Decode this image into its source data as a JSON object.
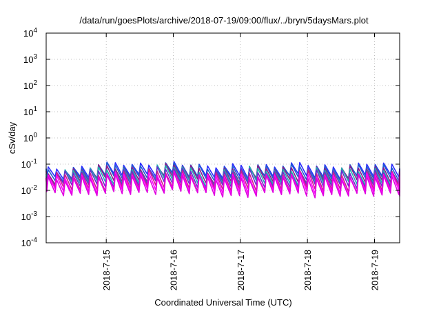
{
  "chart_data": {
    "type": "line",
    "title": "/data/run/goesPlots/archive/2018-07-19/09:00/flux/../bryn/5daysMars.plot",
    "xlabel": "Coordinated Universal Time (UTC)",
    "ylabel": "cSv/day",
    "yscale": "log",
    "ylim": [
      0.0001,
      10000
    ],
    "xlim": [
      "2018-07-14T02:30",
      "2018-07-19T09:00"
    ],
    "grid": true,
    "legend": "none",
    "x_ticks": [
      "2018-7-15",
      "2018-7-16",
      "2018-7-17",
      "2018-7-18",
      "2018-7-19"
    ],
    "y_ticks": [
      {
        "base": "10",
        "exp": "-4"
      },
      {
        "base": "10",
        "exp": "-3"
      },
      {
        "base": "10",
        "exp": "-2"
      },
      {
        "base": "10",
        "exp": "-1"
      },
      {
        "base": "10",
        "exp": "0"
      },
      {
        "base": "10",
        "exp": "1"
      },
      {
        "base": "10",
        "exp": "2"
      },
      {
        "base": "10",
        "exp": "3"
      },
      {
        "base": "10",
        "exp": "4"
      }
    ],
    "sawtooth": {
      "period_hours": 3.0,
      "first_peak": "2018-07-14T03:15",
      "peak_envelope": [
        {
          "x": "2018-07-14T02:30",
          "y": 0.06
        },
        {
          "x": "2018-07-15T00:00",
          "y": 0.1
        },
        {
          "x": "2018-07-15T12:00",
          "y": 0.09
        },
        {
          "x": "2018-07-16T00:00",
          "y": 0.12
        },
        {
          "x": "2018-07-16T12:00",
          "y": 0.07
        },
        {
          "x": "2018-07-17T00:00",
          "y": 0.1
        },
        {
          "x": "2018-07-17T12:00",
          "y": 0.08
        },
        {
          "x": "2018-07-18T00:00",
          "y": 0.1
        },
        {
          "x": "2018-07-18T12:00",
          "y": 0.08
        },
        {
          "x": "2018-07-19T00:00",
          "y": 0.1
        },
        {
          "x": "2018-07-19T09:00",
          "y": 0.08
        }
      ],
      "trough_envelope": [
        {
          "x": "2018-07-14T02:30",
          "y": 0.0045
        },
        {
          "x": "2018-07-15T00:00",
          "y": 0.0035
        },
        {
          "x": "2018-07-15T12:00",
          "y": 0.004
        },
        {
          "x": "2018-07-16T00:00",
          "y": 0.005
        },
        {
          "x": "2018-07-16T12:00",
          "y": 0.0035
        },
        {
          "x": "2018-07-17T00:00",
          "y": 0.003
        },
        {
          "x": "2018-07-17T12:00",
          "y": 0.004
        },
        {
          "x": "2018-07-18T00:00",
          "y": 0.003
        },
        {
          "x": "2018-07-18T12:00",
          "y": 0.0035
        },
        {
          "x": "2018-07-19T00:00",
          "y": 0.003
        },
        {
          "x": "2018-07-19T09:00",
          "y": 0.004
        }
      ]
    },
    "series": [
      {
        "color": "#2b2bff",
        "level": 1.0
      },
      {
        "color": "#1e5fd0",
        "level": 0.92
      },
      {
        "color": "#8b1a8b",
        "level": 0.8
      },
      {
        "color": "#20b0b0",
        "level": 0.7
      },
      {
        "color": "#6a2bd0",
        "level": 0.58
      },
      {
        "color": "#d01e8c",
        "level": 0.42
      },
      {
        "color": "#ff00ff",
        "level": 0.3
      },
      {
        "color": "#e000e0",
        "level": 0.18
      }
    ]
  }
}
